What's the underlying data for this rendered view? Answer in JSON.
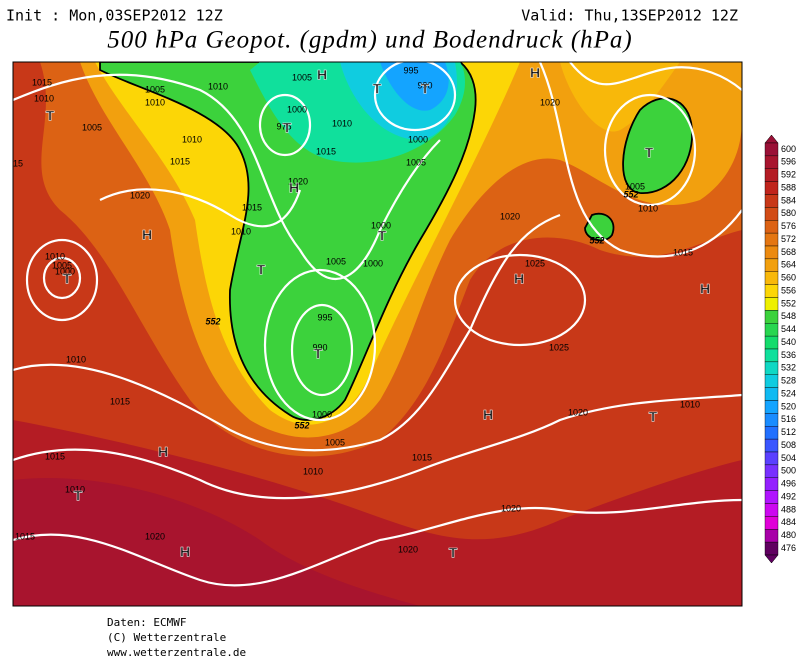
{
  "header": {
    "init": "Init : Mon,03SEP2012 12Z",
    "valid": "Valid: Thu,13SEP2012 12Z",
    "title": "500 hPa Geopot. (gpdm) und Bodendruck (hPa)"
  },
  "colorbar": {
    "labels": [
      600,
      596,
      592,
      588,
      584,
      580,
      576,
      572,
      568,
      564,
      560,
      556,
      552,
      548,
      544,
      540,
      536,
      532,
      528,
      524,
      520,
      516,
      512,
      508,
      504,
      500,
      496,
      492,
      488,
      484,
      480,
      476
    ],
    "colors": [
      "#9a1036",
      "#a8142e",
      "#b41c24",
      "#c0241c",
      "#c83818",
      "#d24c16",
      "#dc6214",
      "#e47612",
      "#ec8a10",
      "#f2a00e",
      "#f8b80a",
      "#fcd606",
      "#eef000",
      "#3cd23c",
      "#28d650",
      "#14dc6c",
      "#10e09c",
      "#10d8c4",
      "#10cce0",
      "#10baf2",
      "#14a4ff",
      "#1a8cff",
      "#2270ff",
      "#3a56ff",
      "#5a40ff",
      "#7830ff",
      "#9420ff",
      "#b014ff",
      "#cc08f0",
      "#e000d8",
      "#a800a8",
      "#600060"
    ]
  },
  "map": {
    "isobar_labels": [
      1015,
      1010,
      1005,
      1005,
      1010,
      1010,
      1005,
      995,
      990,
      1000,
      975,
      1010,
      1000,
      1015,
      1005,
      1010,
      1015,
      15,
      1020,
      1020,
      1015,
      1010,
      1000,
      1005,
      1000,
      1010,
      1005,
      1000,
      995,
      990,
      1010,
      1015,
      1000,
      1005,
      1010,
      1015,
      1015,
      1010,
      1020,
      1015,
      1020,
      1020,
      1020,
      1025,
      1025,
      1020,
      1020,
      1005,
      1010,
      1015,
      1010
    ],
    "height_labels": [
      552,
      552,
      552,
      552
    ],
    "pressure_systems": [
      "H",
      "H",
      "H",
      "H",
      "H",
      "H",
      "H",
      "H",
      "H",
      "T",
      "T",
      "T",
      "T",
      "T",
      "T",
      "T",
      "T",
      "T",
      "T",
      "T",
      "T"
    ]
  },
  "footer": {
    "source": "Daten: ECMWF",
    "copyright": "(C) Wetterzentrale",
    "url": "www.wetterzentrale.de"
  }
}
